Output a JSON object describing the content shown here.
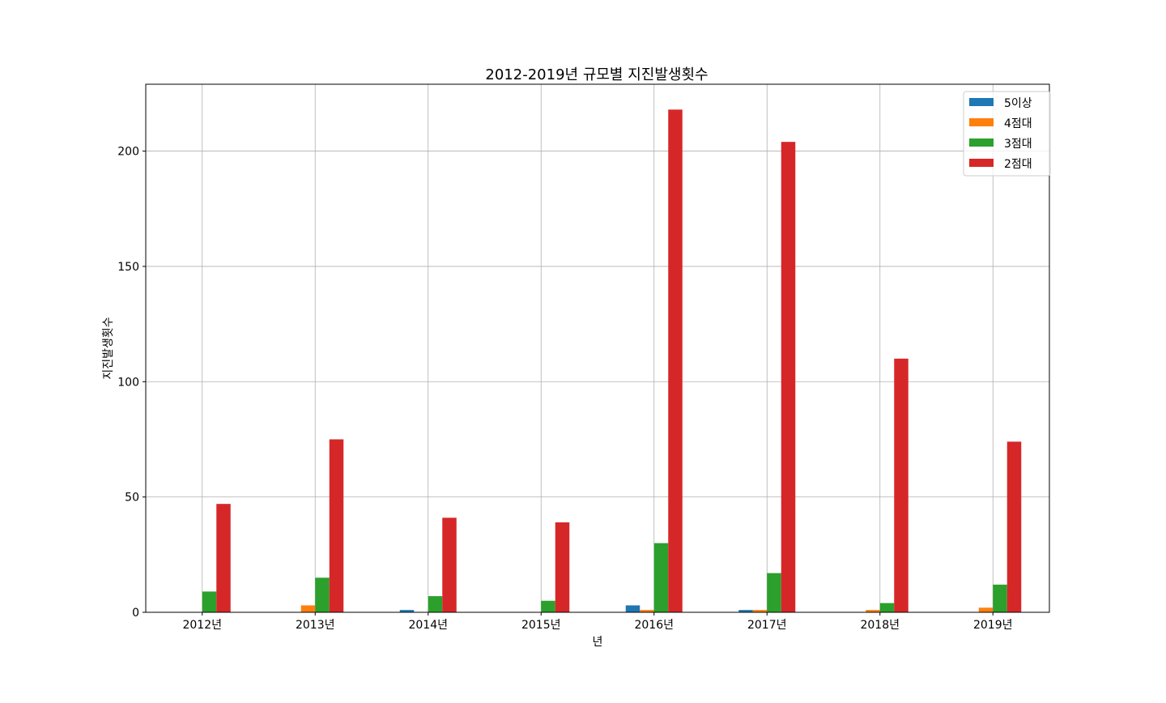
{
  "chart_data": {
    "type": "bar",
    "title": "2012-2019년 규모별 지진발생횟수",
    "xlabel": "년",
    "ylabel": "지진발생횟수",
    "categories": [
      "2012년",
      "2013년",
      "2014년",
      "2015년",
      "2016년",
      "2017년",
      "2018년",
      "2019년"
    ],
    "series": [
      {
        "name": "5이상",
        "color": "#1f77b4",
        "values": [
          0,
          0,
          1,
          0,
          3,
          1,
          0,
          0
        ]
      },
      {
        "name": "4점대",
        "color": "#ff7f0e",
        "values": [
          0,
          3,
          0,
          0,
          1,
          1,
          1,
          2
        ]
      },
      {
        "name": "3점대",
        "color": "#2ca02c",
        "values": [
          9,
          15,
          7,
          5,
          30,
          17,
          4,
          12
        ]
      },
      {
        "name": "2점대",
        "color": "#d62728",
        "values": [
          47,
          75,
          41,
          39,
          218,
          204,
          110,
          74
        ]
      }
    ],
    "ylim": [
      0,
      229
    ],
    "yticks": [
      0,
      50,
      100,
      150,
      200
    ],
    "grid": true,
    "legend": "top-right"
  }
}
